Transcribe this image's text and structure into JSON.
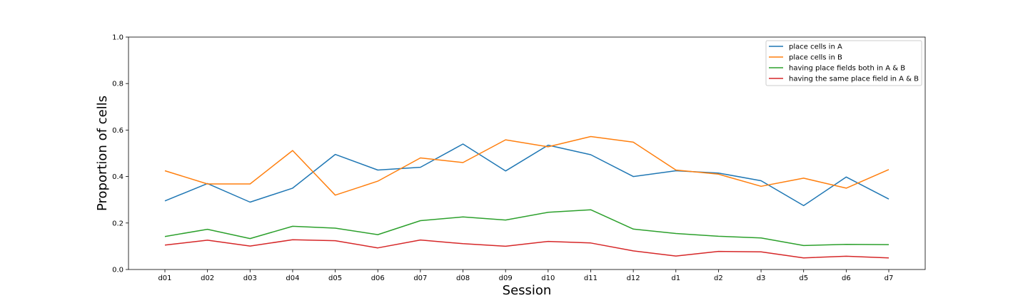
{
  "chart_data": {
    "type": "line",
    "title": "",
    "xlabel": "Session",
    "ylabel": "Proportion of cells",
    "categories": [
      "d01",
      "d02",
      "d03",
      "d04",
      "d05",
      "d06",
      "d07",
      "d08",
      "d09",
      "d10",
      "d11",
      "d12",
      "d1",
      "d2",
      "d3",
      "d5",
      "d6",
      "d7"
    ],
    "ylim": [
      0,
      1.0
    ],
    "yticks": [
      "0.0",
      "0.2",
      "0.4",
      "0.6",
      "0.8",
      "1.0"
    ],
    "grid": false,
    "legend_position": "top-right",
    "series": [
      {
        "name": "place cells in A",
        "color": "#1f77b4",
        "values": [
          0.295,
          0.37,
          0.29,
          0.35,
          0.495,
          0.428,
          0.44,
          0.54,
          0.424,
          0.535,
          0.494,
          0.4,
          0.425,
          0.415,
          0.382,
          0.275,
          0.398,
          0.303
        ]
      },
      {
        "name": "place cells in B",
        "color": "#ff7f0e",
        "values": [
          0.425,
          0.368,
          0.368,
          0.512,
          0.32,
          0.38,
          0.48,
          0.46,
          0.558,
          0.528,
          0.572,
          0.548,
          0.428,
          0.41,
          0.358,
          0.393,
          0.35,
          0.43
        ]
      },
      {
        "name": "having place fields both in A & B",
        "color": "#2ca02c",
        "values": [
          0.142,
          0.173,
          0.133,
          0.186,
          0.178,
          0.15,
          0.21,
          0.226,
          0.213,
          0.246,
          0.257,
          0.174,
          0.155,
          0.143,
          0.136,
          0.103,
          0.108,
          0.107
        ]
      },
      {
        "name": "having the same place field in A & B",
        "color": "#d62728",
        "values": [
          0.105,
          0.126,
          0.101,
          0.128,
          0.124,
          0.093,
          0.127,
          0.111,
          0.1,
          0.121,
          0.114,
          0.08,
          0.058,
          0.078,
          0.076,
          0.05,
          0.057,
          0.05
        ]
      }
    ]
  }
}
